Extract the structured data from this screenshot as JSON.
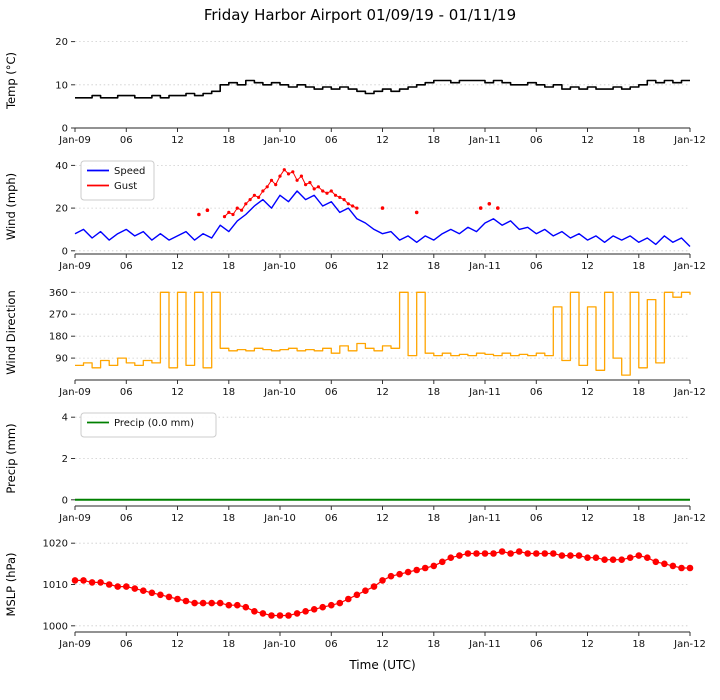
{
  "chart_data": {
    "type": "line",
    "title": "Friday Harbor Airport 01/09/19 - 01/11/19",
    "xlabel": "Time (UTC)",
    "legend_position": "upper left",
    "grid": "horizontal-dotted",
    "x_axis": {
      "lim": [
        0,
        72
      ],
      "ticks": [
        0,
        6,
        12,
        18,
        24,
        30,
        36,
        42,
        48,
        54,
        60,
        66,
        72
      ],
      "labels": [
        "Jan-09",
        "06",
        "12",
        "18",
        "Jan-10",
        "06",
        "12",
        "18",
        "Jan-11",
        "06",
        "12",
        "18",
        "Jan-12"
      ]
    },
    "subplots": [
      {
        "name": "temp",
        "ylabel": "Temp (°C)",
        "ylim": [
          0,
          22
        ],
        "yticks": [
          0,
          10,
          20
        ],
        "legend": null,
        "series": [
          {
            "name": "temp",
            "color": "#000000",
            "type": "step",
            "width": 1.6,
            "x_start": 0,
            "x_step": 1,
            "y": [
              7,
              7,
              7.5,
              7,
              7,
              7.5,
              7.5,
              7,
              7,
              7.5,
              7,
              7.5,
              7.5,
              8,
              7.5,
              8,
              8.5,
              10,
              10.5,
              10,
              11,
              10.5,
              10,
              10.5,
              10,
              9.5,
              10,
              9.5,
              9,
              9.5,
              9,
              9.5,
              9,
              8.5,
              8,
              8.5,
              9,
              8.5,
              9,
              9.5,
              10,
              10.5,
              11,
              11,
              10.5,
              11,
              11,
              11,
              10.5,
              11,
              10.5,
              10,
              10,
              10.5,
              10,
              9.5,
              10,
              9,
              9.5,
              9,
              9.5,
              9,
              9,
              9.5,
              9,
              9.5,
              10,
              11,
              10.5,
              11,
              10.5,
              11,
              11
            ]
          }
        ]
      },
      {
        "name": "wind",
        "ylabel": "Wind (mph)",
        "ylim": [
          -1.5,
          43
        ],
        "yticks": [
          0,
          20,
          40
        ],
        "legend": [
          {
            "label": "Speed",
            "color": "#0000ff"
          },
          {
            "label": "Gust",
            "color": "#ff0000"
          }
        ],
        "series": [
          {
            "name": "speed",
            "color": "#0000ff",
            "type": "line",
            "width": 1.4,
            "x_start": 0,
            "x_step": 1,
            "y": [
              8,
              10,
              6,
              9,
              5,
              8,
              10,
              7,
              9,
              5,
              8,
              5,
              7,
              9,
              5,
              8,
              6,
              12,
              9,
              14,
              17,
              21,
              24,
              20,
              26,
              23,
              28,
              24,
              26,
              21,
              23,
              18,
              20,
              15,
              13,
              10,
              8,
              9,
              5,
              7,
              4,
              7,
              5,
              8,
              10,
              8,
              11,
              9,
              13,
              15,
              12,
              14,
              10,
              11,
              8,
              10,
              7,
              9,
              6,
              8,
              5,
              7,
              4,
              7,
              5,
              7,
              4,
              6,
              3,
              7,
              4,
              6,
              2
            ]
          },
          {
            "name": "gust",
            "color": "#ff0000",
            "type": "line",
            "width": 1,
            "marker": 1.6,
            "x_start": 17.5,
            "x_step": 0.5,
            "y": [
              16,
              18,
              17,
              20,
              19,
              22,
              24,
              26,
              25,
              28,
              30,
              33,
              31,
              35,
              38,
              36,
              37,
              33,
              35,
              31,
              32,
              29,
              30,
              28,
              27,
              28,
              26,
              25,
              24,
              22,
              21,
              20
            ]
          },
          {
            "name": "gust-isolated",
            "color": "#ff0000",
            "type": "scatter",
            "marker": 1.8,
            "x": [
              14.5,
              15.5,
              36,
              40,
              47.5,
              48.5,
              49.5
            ],
            "y": [
              17,
              19,
              20,
              18,
              20,
              22,
              20
            ]
          }
        ]
      },
      {
        "name": "wind-direction",
        "ylabel": "Wind Direction",
        "ylim": [
          0,
          390
        ],
        "yticks": [
          90,
          180,
          270,
          360
        ],
        "legend": null,
        "series": [
          {
            "name": "direction",
            "color": "#ffa500",
            "type": "step",
            "width": 1.3,
            "x_start": 0,
            "x_step": 1,
            "y": [
              60,
              70,
              50,
              80,
              60,
              90,
              70,
              60,
              80,
              70,
              360,
              50,
              360,
              60,
              360,
              50,
              360,
              130,
              120,
              125,
              120,
              130,
              125,
              120,
              125,
              130,
              120,
              125,
              120,
              130,
              110,
              140,
              120,
              150,
              130,
              120,
              140,
              130,
              360,
              100,
              360,
              110,
              100,
              110,
              100,
              105,
              100,
              110,
              105,
              100,
              110,
              100,
              105,
              100,
              110,
              100,
              300,
              80,
              360,
              60,
              300,
              40,
              360,
              90,
              20,
              360,
              50,
              330,
              70,
              360,
              340,
              360,
              350
            ]
          }
        ]
      },
      {
        "name": "precip",
        "ylabel": "Precip (mm)",
        "ylim": [
          -0.3,
          4.3
        ],
        "yticks": [
          0,
          2,
          4
        ],
        "legend": [
          {
            "label": "Precip (0.0 mm)",
            "color": "#008000"
          }
        ],
        "series": [
          {
            "name": "precip",
            "color": "#008000",
            "type": "line",
            "width": 2,
            "x": [
              0,
              72
            ],
            "y": [
              0,
              0
            ]
          }
        ]
      },
      {
        "name": "mslp",
        "ylabel": "MSLP (hPa)",
        "ylim": [
          998.5,
          1021.5
        ],
        "yticks": [
          1000,
          1010,
          1020
        ],
        "legend": null,
        "series": [
          {
            "name": "mslp",
            "color": "#ff0000",
            "type": "line",
            "width": 1.2,
            "marker": 3.3,
            "x_start": 0,
            "x_step": 1,
            "y": [
              1011,
              1011,
              1010.5,
              1010.5,
              1010,
              1009.5,
              1009.5,
              1009,
              1008.5,
              1008,
              1007.5,
              1007,
              1006.5,
              1006,
              1005.5,
              1005.5,
              1005.5,
              1005.5,
              1005,
              1005,
              1004.5,
              1003.5,
              1003,
              1002.5,
              1002.5,
              1002.5,
              1003,
              1003.5,
              1004,
              1004.5,
              1005,
              1005.5,
              1006.5,
              1007.5,
              1008.5,
              1009.5,
              1011,
              1012,
              1012.5,
              1013,
              1013.5,
              1014,
              1014.5,
              1015.5,
              1016.5,
              1017,
              1017.5,
              1017.5,
              1017.5,
              1017.5,
              1018,
              1017.5,
              1018,
              1017.5,
              1017.5,
              1017.5,
              1017.5,
              1017,
              1017,
              1017,
              1016.5,
              1016.5,
              1016,
              1016,
              1016,
              1016.5,
              1017,
              1016.5,
              1015.5,
              1015,
              1014.5,
              1014,
              1014
            ]
          }
        ]
      }
    ]
  }
}
